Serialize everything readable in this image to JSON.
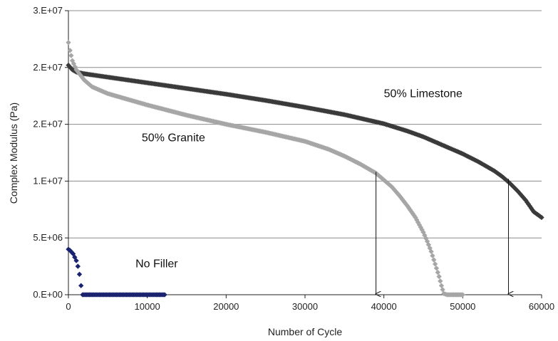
{
  "chart_data": {
    "type": "scatter",
    "title": "",
    "xlabel": "Number of Cycle",
    "ylabel": "Complex Modulus (Pa)",
    "xlim": [
      0,
      60000
    ],
    "ylim": [
      0,
      25000000
    ],
    "x_ticks": [
      0,
      10000,
      20000,
      30000,
      40000,
      50000,
      60000
    ],
    "x_tick_labels": [
      "0",
      "10000",
      "20000",
      "30000",
      "40000",
      "50000",
      "60000"
    ],
    "y_ticks": [
      0,
      5000000,
      10000000,
      15000000,
      20000000,
      25000000
    ],
    "y_tick_labels": [
      "0.E+00",
      "5.E+06",
      "1.E+07",
      "2.E+07",
      "2.E+07",
      "3.E+07"
    ],
    "grid": {
      "horizontal": true,
      "vertical": false
    },
    "legend": "none",
    "series": [
      {
        "name": "50% Limestone",
        "color": "#3a3a3a",
        "x": [
          0,
          500,
          1000,
          2000,
          3000,
          5000,
          8000,
          10000,
          12000,
          15000,
          20000,
          25000,
          30000,
          35000,
          40000,
          43000,
          45000,
          48000,
          50000,
          52000,
          54000,
          55000,
          56000,
          57000,
          58000,
          59000,
          60000
        ],
        "y": [
          20200000,
          19800000,
          19600000,
          19450000,
          19350000,
          19150000,
          18850000,
          18650000,
          18450000,
          18150000,
          17650000,
          17100000,
          16500000,
          15850000,
          15050000,
          14400000,
          13900000,
          13000000,
          12400000,
          11700000,
          10900000,
          10400000,
          9800000,
          9100000,
          8300000,
          7300000,
          6800000
        ]
      },
      {
        "name": "50% Granite",
        "color": "#a6a6a6",
        "x": [
          0,
          200,
          500,
          1000,
          2000,
          3000,
          5000,
          8000,
          10000,
          15000,
          20000,
          25000,
          30000,
          33000,
          35000,
          37000,
          39000,
          40000,
          41000,
          42000,
          43000,
          44000,
          45000,
          45500,
          46000,
          46500,
          47000,
          47300,
          47600,
          48000,
          49000,
          50000
        ],
        "y": [
          22200000,
          21500000,
          20600000,
          19800000,
          18900000,
          18300000,
          17700000,
          17100000,
          16700000,
          15800000,
          15000000,
          14300000,
          13500000,
          12800000,
          12200000,
          11500000,
          10700000,
          10100000,
          9500000,
          8700000,
          7800000,
          6800000,
          5500000,
          4700000,
          3800000,
          2700000,
          1600000,
          800000,
          100000,
          0,
          0,
          0
        ]
      },
      {
        "name": "No Filler",
        "color": "#1a2370",
        "x": [
          0,
          200,
          400,
          600,
          800,
          1000,
          1200,
          1400,
          1600,
          1800,
          3000,
          5000,
          7000,
          9000,
          11000,
          12200
        ],
        "y": [
          4000000,
          3900000,
          3750000,
          3600000,
          3300000,
          3000000,
          2500000,
          1800000,
          800000,
          0,
          0,
          0,
          0,
          0,
          0,
          0
        ]
      }
    ],
    "annotations": [
      {
        "text": "50% Limestone",
        "x": 40000,
        "y": 17400000
      },
      {
        "text": "50% Granite",
        "x": 9300,
        "y": 13500000
      },
      {
        "text": "No Filler",
        "x": 8500,
        "y": 2400000
      }
    ],
    "arrows": [
      {
        "x": 39000,
        "y_from": 10800000,
        "y_to": 0
      },
      {
        "x": 55800,
        "y_from": 10200000,
        "y_to": 0
      }
    ]
  }
}
